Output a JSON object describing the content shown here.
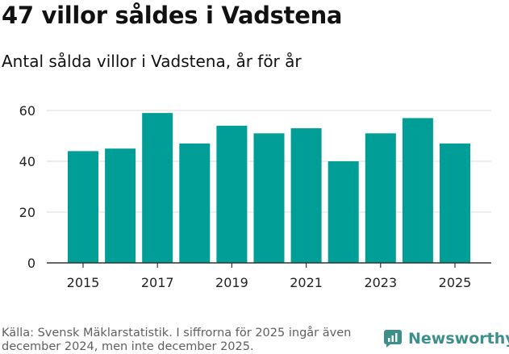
{
  "header": {
    "title": "47 villor såldes i Vadstena",
    "subtitle": "Antal sålda villor i Vadstena, år för år"
  },
  "footer": {
    "source": "Källa: Svensk Mäklarstatistik. I siffrorna för 2025 ingår även december 2024, men inte december 2025.",
    "brand": "Newsworthy"
  },
  "colors": {
    "bar": "#009e96",
    "grid": "#dddddd",
    "axis": "#333333",
    "brand": "#3d8f8a"
  },
  "chart_data": {
    "type": "bar",
    "categories": [
      "2015",
      "2016",
      "2017",
      "2018",
      "2019",
      "2020",
      "2021",
      "2022",
      "2023",
      "2024",
      "2025"
    ],
    "values": [
      44,
      45,
      59,
      47,
      54,
      51,
      53,
      40,
      51,
      57,
      47
    ],
    "x_tick_labels": [
      "2015",
      "2017",
      "2019",
      "2021",
      "2023",
      "2025"
    ],
    "y_ticks": [
      0,
      20,
      40,
      60
    ],
    "ylim": [
      0,
      60
    ],
    "grid": true,
    "legend": "none"
  }
}
